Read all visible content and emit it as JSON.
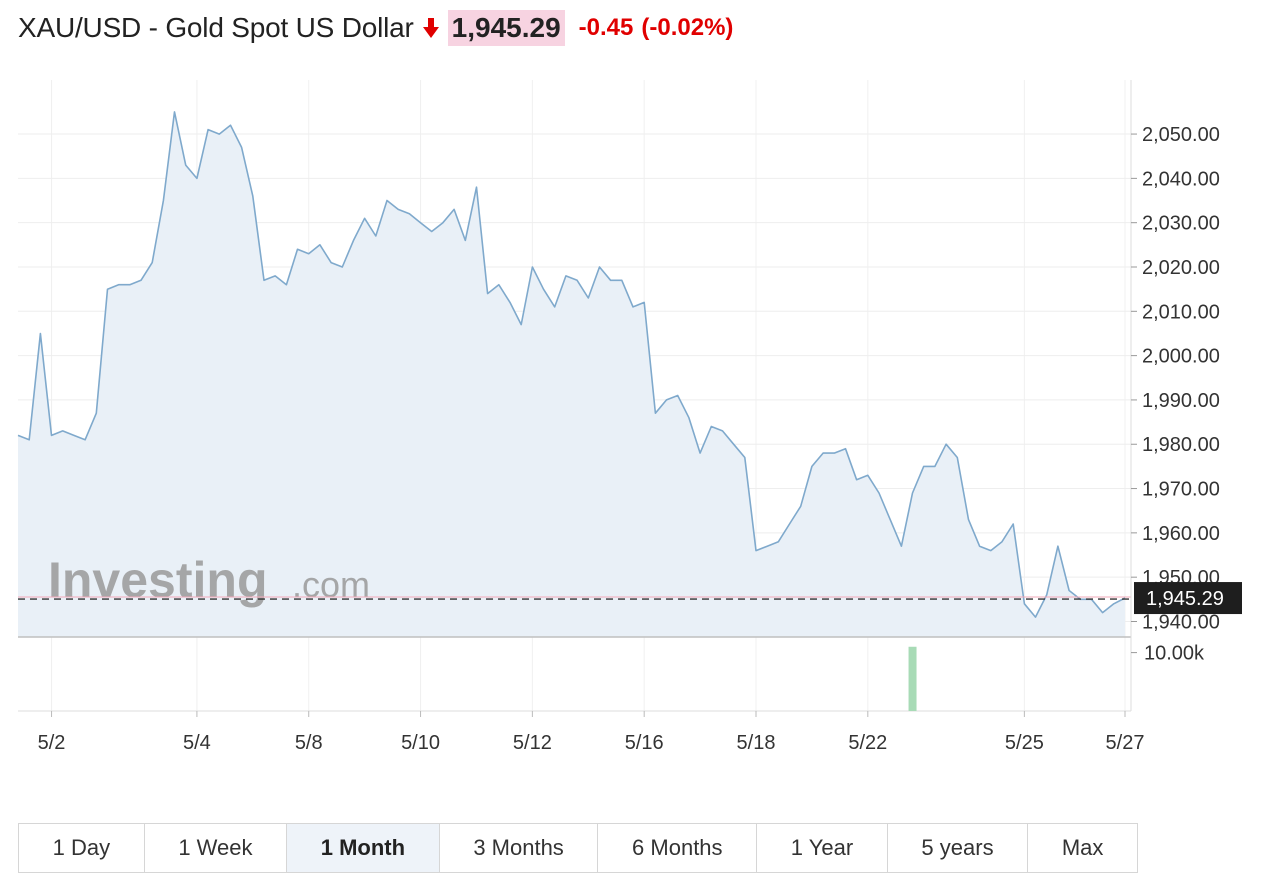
{
  "header": {
    "title": "XAU/USD - Gold Spot US Dollar",
    "price": "1,945.29",
    "change": "-0.45",
    "change_pct": "(-0.02%)",
    "arrow_icon": "arrow-down-icon",
    "change_color": "#e00000",
    "price_bg": "#f7d3e1"
  },
  "chart_data": {
    "type": "area",
    "y_ticks": [
      "2,050.00",
      "2,040.00",
      "2,030.00",
      "2,020.00",
      "2,010.00",
      "2,000.00",
      "1,990.00",
      "1,980.00",
      "1,970.00",
      "1,960.00",
      "1,950.00",
      "1,940.00"
    ],
    "y_tick_values": [
      2050,
      2040,
      2030,
      2020,
      2010,
      2000,
      1990,
      1980,
      1970,
      1960,
      1950,
      1940
    ],
    "ylim": [
      1936.5,
      2062.2
    ],
    "x_ticks": [
      "5/2",
      "5/4",
      "5/8",
      "5/10",
      "5/12",
      "5/16",
      "5/18",
      "5/22",
      "5/25",
      "5/27"
    ],
    "x_tick_index": [
      3,
      16,
      26,
      36,
      46,
      56,
      66,
      76,
      90,
      99
    ],
    "current_price": 1945.29,
    "current_label": "1,945.29",
    "watermark": {
      "brand": "Investing",
      "suffix": ".com"
    },
    "volume_label": "10.00k",
    "volume_bar": {
      "index": 80,
      "value": 11000
    },
    "volume_ylim": [
      0,
      12500
    ],
    "line_color": "#7fa9cc",
    "fill_color": "#e9f0f7",
    "volume_color": "#a8dbb6",
    "values": [
      1982,
      1981,
      2005,
      1982,
      1983,
      1982,
      1981,
      1987,
      2015,
      2016,
      2016,
      2017,
      2021,
      2035,
      2055,
      2043,
      2040,
      2051,
      2050,
      2052,
      2047,
      2036,
      2017,
      2018,
      2016,
      2024,
      2023,
      2025,
      2021,
      2020,
      2026,
      2031,
      2027,
      2035,
      2033,
      2032,
      2030,
      2028,
      2030,
      2033,
      2026,
      2038,
      2014,
      2016,
      2012,
      2007,
      2020,
      2015,
      2011,
      2018,
      2017,
      2013,
      2020,
      2017,
      2017,
      2011,
      2012,
      1987,
      1990,
      1991,
      1986,
      1978,
      1984,
      1983,
      1980,
      1977,
      1956,
      1957,
      1958,
      1962,
      1966,
      1975,
      1978,
      1978,
      1979,
      1972,
      1973,
      1969,
      1963,
      1957,
      1969,
      1975,
      1975,
      1980,
      1977,
      1963,
      1957,
      1956,
      1958,
      1962,
      1944,
      1941,
      1946,
      1957,
      1947,
      1945,
      1945,
      1942,
      1944,
      1945.29
    ]
  },
  "ranges": [
    {
      "label": "1 Day",
      "active": false
    },
    {
      "label": "1 Week",
      "active": false
    },
    {
      "label": "1 Month",
      "active": true
    },
    {
      "label": "3 Months",
      "active": false
    },
    {
      "label": "6 Months",
      "active": false
    },
    {
      "label": "1 Year",
      "active": false
    },
    {
      "label": "5 years",
      "active": false
    },
    {
      "label": "Max",
      "active": false
    }
  ]
}
